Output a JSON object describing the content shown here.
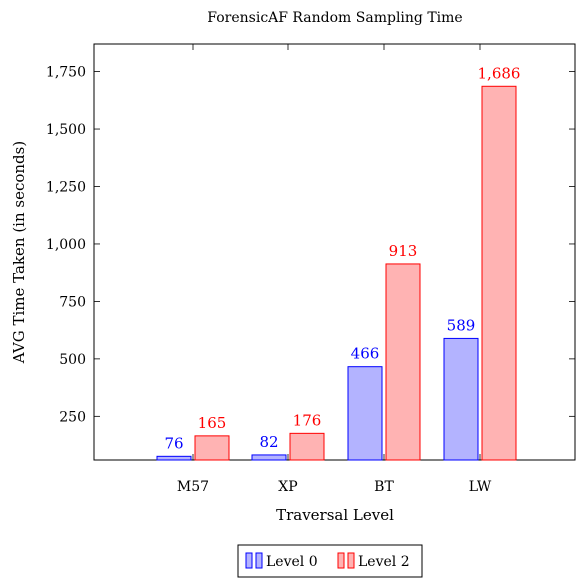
{
  "chart_data": {
    "type": "bar",
    "title": "ForensicAF Random Sampling Time",
    "xlabel": "Traversal Level",
    "ylabel": "AVG Time Taken (in seconds)",
    "categories": [
      "M57",
      "XP",
      "BT",
      "LW"
    ],
    "series": [
      {
        "name": "Level 0",
        "values": [
          76,
          82,
          466,
          589
        ],
        "labels": [
          "76",
          "82",
          "466",
          "589"
        ],
        "color": "#0000ff",
        "fill": "#b3b3ff"
      },
      {
        "name": "Level 2",
        "values": [
          165,
          176,
          913,
          1686
        ],
        "labels": [
          "165",
          "176",
          "913",
          "1,686"
        ],
        "color": "#ff0000",
        "fill": "#ffb3b3"
      }
    ],
    "ylim": [
      60,
      1870
    ],
    "yticks": [
      250,
      500,
      750,
      1000,
      1250,
      1500,
      1750
    ],
    "ytick_labels": [
      "250",
      "500",
      "750",
      "1,000",
      "1,250",
      "1,500",
      "1,750"
    ],
    "grid": false,
    "legend_position": "bottom-center"
  }
}
